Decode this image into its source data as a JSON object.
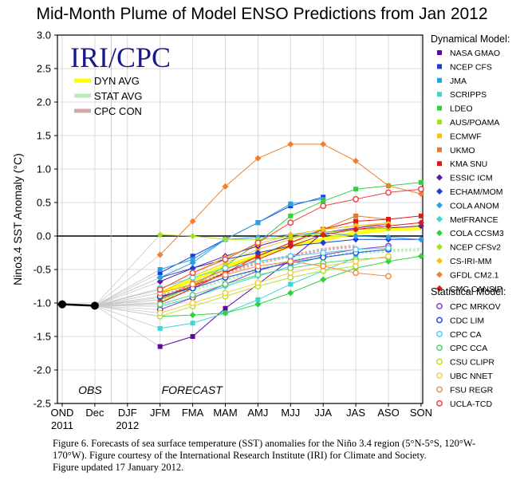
{
  "figure": {
    "title": "Mid-Month Plume of Model ENSO Predictions from Jan 2012",
    "logo_text": "IRI/CPC",
    "caption_lines": [
      "Figure 6. Forecasts of sea surface temperature (SST) anomalies for the Niño 3.4 region (5°N-5°S, 120°W-",
      "170°W).  Figure courtesy of the International Research Institute (IRI) for Climate and Society.",
      "Figure updated 17 January 2012."
    ]
  },
  "chart_data": {
    "type": "line",
    "title": "Mid-Month Plume of Model ENSO Predictions from Jan 2012",
    "ylabel": "Nino3.4 SST Anomaly (°C)",
    "xlabel": "",
    "ylim": [
      -2.5,
      3.0
    ],
    "y_ticks": [
      3.0,
      2.5,
      2.0,
      1.5,
      1.0,
      0.5,
      0.0,
      -0.5,
      -1.0,
      -1.5,
      -2.0,
      -2.5
    ],
    "y_tick_labels": [
      "3.0",
      "2.5",
      "2.0",
      "1.5",
      "1.0",
      "0.5",
      "0.0",
      "-0.5",
      "-1.0",
      "-1.5",
      "-2.0",
      "-2.5"
    ],
    "categories": [
      "OND",
      "Dec",
      "DJF",
      "JFM",
      "FMA",
      "MAM",
      "AMJ",
      "MJJ",
      "JJA",
      "JAS",
      "ASO",
      "SON"
    ],
    "x_tick_labels": [
      "OND",
      "Dec",
      "DJF",
      "JFM",
      "FMA",
      "MAM",
      "AMJ",
      "MJJ",
      "JJA",
      "JAS",
      "ASO",
      "SON"
    ],
    "x_sublabels": [
      {
        "under": "OND",
        "text": "2011"
      },
      {
        "under": "DJF",
        "text": "2012"
      }
    ],
    "region_labels": {
      "obs": "OBS",
      "forecast": "FORECAST"
    },
    "grid": true,
    "zero_line": true,
    "observed": {
      "name": "OBS",
      "color": "#000000",
      "x": [
        "OND",
        "Dec"
      ],
      "values": [
        -1.02,
        -1.04
      ]
    },
    "legend_left": [
      {
        "label": "DYN AVG",
        "color": "#ffff00"
      },
      {
        "label": "STAT AVG",
        "color": "#b8ecb8"
      },
      {
        "label": "CPC CON",
        "color": "#d8a8a8"
      }
    ],
    "legend_right_headers": {
      "dynamical": "Dynamical Model:",
      "statistical": "Statistical Model:"
    },
    "averages": [
      {
        "name": "DYN AVG",
        "color": "#ffff00",
        "values": [
          -0.85,
          -0.65,
          -0.45,
          -0.3,
          -0.15,
          -0.05,
          0.05,
          0.1,
          0.12
        ]
      },
      {
        "name": "STAT AVG",
        "color": "#b8ecb8",
        "values": [
          -0.95,
          -0.8,
          -0.65,
          -0.5,
          -0.38,
          -0.3,
          -0.25,
          -0.22,
          -0.2
        ]
      },
      {
        "name": "CPC CON",
        "color": "#d8a8a8",
        "values": [
          -0.9,
          -0.75,
          -0.55,
          -0.4,
          -0.3,
          -0.2,
          -0.15,
          null,
          null
        ]
      }
    ],
    "dynamical_series": [
      {
        "name": "NASA GMAO",
        "color": "#5a0a9e",
        "marker": "square",
        "values": [
          -1.65,
          -1.5,
          -1.08,
          -0.72,
          -0.35,
          0.05,
          0.12,
          0.18,
          null
        ]
      },
      {
        "name": "NCEP CFS",
        "color": "#1e3cd6",
        "marker": "square",
        "values": [
          -0.55,
          -0.3,
          -0.05,
          0.2,
          0.45,
          0.58,
          null,
          null,
          null
        ]
      },
      {
        "name": "JMA",
        "color": "#2aa0e6",
        "marker": "square",
        "values": [
          -0.5,
          -0.35,
          -0.05,
          0.2,
          0.48,
          0.55,
          null,
          null,
          null
        ]
      },
      {
        "name": "SCRIPPS",
        "color": "#3cd6d6",
        "marker": "square",
        "values": [
          -1.38,
          -1.3,
          -1.15,
          -0.95,
          -0.72,
          -0.52,
          -0.32,
          null,
          null
        ]
      },
      {
        "name": "LDEO",
        "color": "#30d23a",
        "marker": "square",
        "values": [
          -0.95,
          -0.75,
          -0.45,
          -0.1,
          0.3,
          0.52,
          0.7,
          0.75,
          0.8
        ]
      },
      {
        "name": "AUS/POAMA",
        "color": "#a6e020",
        "marker": "square",
        "values": [
          -1.0,
          -0.72,
          -0.5,
          -0.3,
          -0.1,
          0.05,
          0.1,
          0.12,
          null
        ]
      },
      {
        "name": "ECMWF",
        "color": "#f5c21a",
        "marker": "square",
        "values": [
          -0.85,
          -0.6,
          -0.4,
          -0.2,
          -0.05,
          0.1,
          0.15,
          0.2,
          null
        ]
      },
      {
        "name": "UKMO",
        "color": "#e8782a",
        "marker": "square",
        "values": [
          -0.95,
          -0.7,
          -0.5,
          -0.3,
          -0.1,
          0.1,
          0.3,
          0.25,
          null
        ]
      },
      {
        "name": "KMA SNU",
        "color": "#e01818",
        "marker": "square",
        "values": [
          -1.0,
          -0.78,
          -0.55,
          -0.3,
          -0.1,
          0.1,
          0.22,
          0.25,
          0.3
        ]
      },
      {
        "name": "ESSIC ICM",
        "color": "#5a1e9e",
        "marker": "diamond",
        "values": [
          -0.68,
          -0.48,
          -0.3,
          -0.15,
          -0.02,
          0.05,
          0.1,
          0.12,
          0.15
        ]
      },
      {
        "name": "ECHAM/MOM",
        "color": "#1e3cd6",
        "marker": "diamond",
        "values": [
          -0.62,
          -0.48,
          -0.35,
          -0.25,
          -0.15,
          -0.1,
          -0.05,
          -0.05,
          -0.05
        ]
      },
      {
        "name": "COLA ANOM",
        "color": "#2aa0e6",
        "marker": "diamond",
        "values": [
          -0.62,
          -0.4,
          -0.05,
          -0.02,
          0.02,
          0.05,
          0.0,
          -0.02,
          -0.05
        ]
      },
      {
        "name": "MetFRANCE",
        "color": "#3cd6d6",
        "marker": "diamond",
        "values": [
          -1.05,
          -0.92,
          -0.75,
          -0.6,
          -0.45,
          -0.3,
          null,
          null,
          null
        ]
      },
      {
        "name": "COLA CCSM3",
        "color": "#30d23a",
        "marker": "diamond",
        "values": [
          -1.2,
          -1.18,
          -1.15,
          -1.02,
          -0.85,
          -0.65,
          -0.48,
          -0.38,
          -0.3
        ]
      },
      {
        "name": "NCEP CFSv2",
        "color": "#a6e020",
        "marker": "diamond",
        "values": [
          0.02,
          0.0,
          -0.05,
          -0.05,
          -0.02,
          0.05,
          0.1,
          0.12,
          null
        ]
      },
      {
        "name": "CS-IRI-MM",
        "color": "#f5c21a",
        "marker": "diamond",
        "values": [
          -0.8,
          -0.55,
          -0.32,
          -0.12,
          0.02,
          0.1,
          0.15,
          0.18,
          null
        ]
      },
      {
        "name": "GFDL CM2.1",
        "color": "#f08030",
        "marker": "diamond",
        "values": [
          -0.28,
          0.22,
          0.74,
          1.16,
          1.37,
          1.37,
          1.12,
          0.75,
          0.63
        ]
      },
      {
        "name": "CMC CANSIP",
        "color": "#e01818",
        "marker": "diamond",
        "values": [
          -0.92,
          -0.75,
          -0.55,
          -0.35,
          -0.15,
          0.02,
          0.1,
          0.15,
          0.2
        ]
      }
    ],
    "statistical_series": [
      {
        "name": "CPC MRKOV",
        "color": "#8a3cc8",
        "marker": "circle",
        "values": [
          -1.1,
          -0.92,
          -0.72,
          -0.52,
          -0.38,
          -0.28,
          -0.2,
          -0.15,
          null
        ]
      },
      {
        "name": "CDC LIM",
        "color": "#2a4ae0",
        "marker": "circle",
        "values": [
          -0.9,
          -0.78,
          -0.62,
          -0.5,
          -0.4,
          -0.32,
          -0.25,
          -0.2,
          null
        ]
      },
      {
        "name": "CPC CA",
        "color": "#50d0f0",
        "marker": "circle",
        "values": [
          -0.78,
          -0.62,
          -0.48,
          -0.38,
          -0.3,
          -0.25,
          -0.2,
          -0.18,
          null
        ]
      },
      {
        "name": "CPC CCA",
        "color": "#50d870",
        "marker": "circle",
        "values": [
          -1.02,
          -0.88,
          -0.72,
          -0.58,
          -0.48,
          -0.4,
          -0.35,
          -0.32,
          null
        ]
      },
      {
        "name": "CSU CLIPR",
        "color": "#b8e030",
        "marker": "circle",
        "values": [
          -1.2,
          -1.05,
          -0.9,
          -0.75,
          -0.62,
          -0.52,
          -0.45,
          null,
          null
        ]
      },
      {
        "name": "UBC NNET",
        "color": "#f0d040",
        "marker": "circle",
        "values": [
          -1.15,
          -1.0,
          -0.85,
          -0.7,
          -0.55,
          -0.45,
          -0.38,
          -0.3,
          null
        ]
      },
      {
        "name": "FSU REGR",
        "color": "#f09040",
        "marker": "circle",
        "values": [
          -0.85,
          -0.72,
          -0.58,
          -0.45,
          -0.38,
          -0.45,
          -0.55,
          -0.6,
          null
        ]
      },
      {
        "name": "UCLA-TCD",
        "color": "#e84848",
        "marker": "circle",
        "values": [
          -0.8,
          -0.55,
          -0.35,
          -0.1,
          0.2,
          0.45,
          0.55,
          0.65,
          0.7
        ]
      }
    ]
  }
}
